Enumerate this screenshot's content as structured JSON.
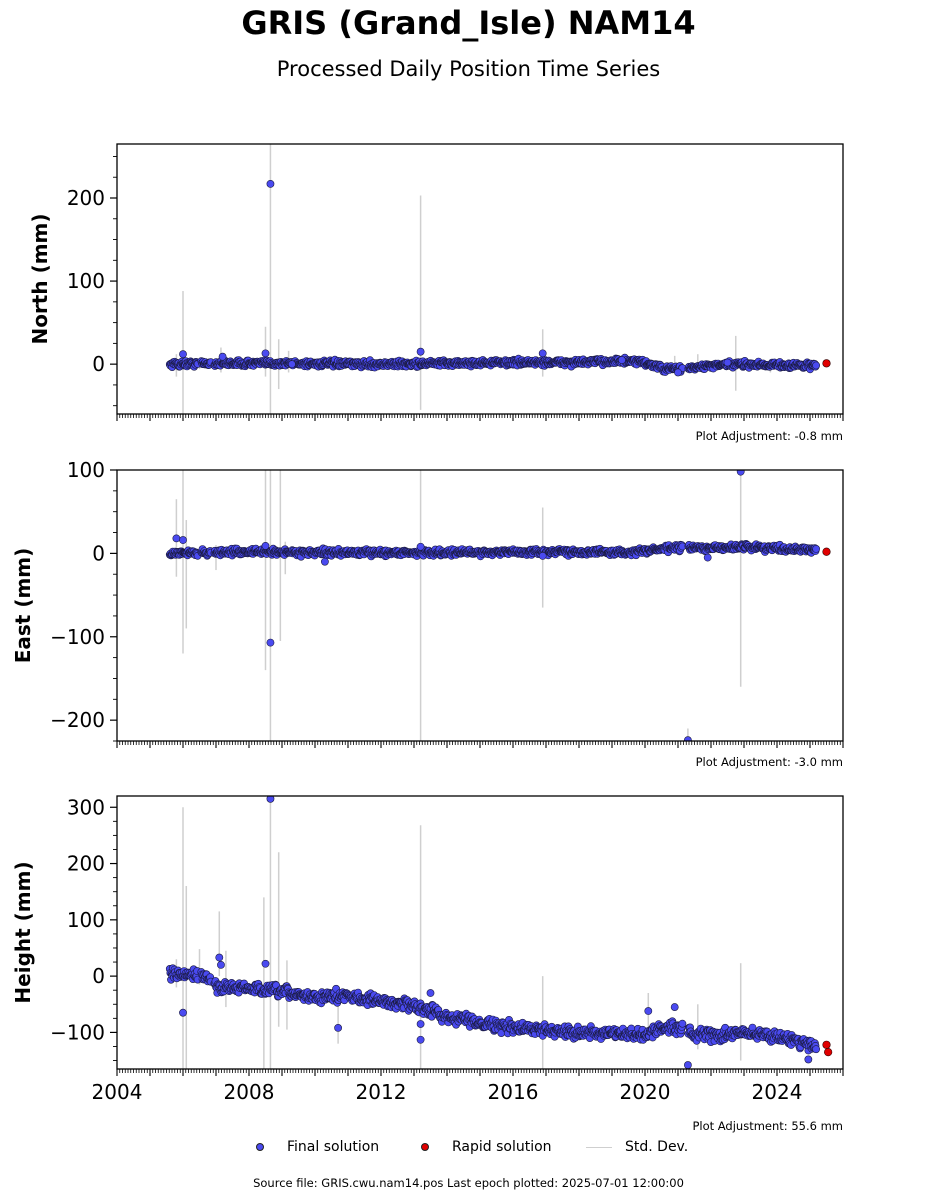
{
  "title": "GRIS (Grand_Isle) NAM14",
  "subtitle": "Processed Daily Position Time Series",
  "legend": {
    "final_label": "Final solution",
    "rapid_label": "Rapid solution",
    "stddev_label": "Std. Dev.",
    "final_color": "#4a4af0",
    "rapid_color": "#e00000",
    "stddev_color": "#cfcfcf"
  },
  "source_text": "Source file: GRIS.cwu.nam14.pos  Last epoch plotted: 2025-07-01 12:00:00",
  "chart_data": [
    {
      "type": "scatter",
      "ylabel": "North (mm)",
      "ylim": [
        -60,
        265
      ],
      "yticks": [
        0,
        100,
        200
      ],
      "adjustment": "Plot Adjustment: -0.8 mm",
      "base": [
        [
          2005.6,
          0
        ],
        [
          2007.0,
          1
        ],
        [
          2009.0,
          1
        ],
        [
          2012.0,
          0
        ],
        [
          2014.0,
          1
        ],
        [
          2016.0,
          2
        ],
        [
          2018.0,
          2
        ],
        [
          2019.2,
          4
        ],
        [
          2020.0,
          2
        ],
        [
          2020.6,
          -6
        ],
        [
          2021.3,
          -5
        ],
        [
          2022.0,
          -2
        ],
        [
          2023.0,
          0
        ],
        [
          2025.2,
          -2
        ]
      ],
      "noise": 2.5,
      "gaps": [
        [
          2006.45,
          2006.55
        ],
        [
          2006.85,
          2006.95
        ],
        [
          2021.15,
          2021.3
        ]
      ],
      "outliers": [
        [
          2006.0,
          12
        ],
        [
          2007.2,
          9
        ],
        [
          2008.5,
          13
        ],
        [
          2008.65,
          217
        ],
        [
          2009.3,
          0
        ],
        [
          2013.2,
          15
        ],
        [
          2016.9,
          13
        ],
        [
          2019.3,
          5
        ],
        [
          2021.0,
          -10
        ],
        [
          2022.5,
          2
        ]
      ],
      "errorbars": [
        [
          2005.8,
          -15,
          12
        ],
        [
          2006.0,
          -60,
          88
        ],
        [
          2006.5,
          -6,
          5
        ],
        [
          2007.15,
          -10,
          20
        ],
        [
          2008.5,
          -15,
          45
        ],
        [
          2008.65,
          -60,
          265
        ],
        [
          2008.9,
          -30,
          30
        ],
        [
          2009.2,
          -10,
          16
        ],
        [
          2013.2,
          -55,
          203
        ],
        [
          2016.9,
          -15,
          42
        ],
        [
          2020.9,
          -10,
          10
        ],
        [
          2021.6,
          -8,
          12
        ],
        [
          2022.75,
          -32,
          34
        ],
        [
          2023.8,
          -10,
          5
        ]
      ],
      "rapid": [
        [
          2025.5,
          1
        ]
      ]
    },
    {
      "type": "scatter",
      "ylabel": "East (mm)",
      "ylim": [
        -225,
        100
      ],
      "yticks": [
        -200,
        -100,
        0,
        100
      ],
      "adjustment": "Plot Adjustment: -3.0 mm",
      "base": [
        [
          2005.6,
          0
        ],
        [
          2008.0,
          2
        ],
        [
          2010.0,
          1
        ],
        [
          2014.0,
          1
        ],
        [
          2018.0,
          2
        ],
        [
          2019.5,
          1
        ],
        [
          2020.2,
          4
        ],
        [
          2021.0,
          7
        ],
        [
          2022.0,
          6
        ],
        [
          2023.0,
          8
        ],
        [
          2025.2,
          4
        ]
      ],
      "noise": 2.5,
      "gaps": [
        [
          2006.45,
          2006.55
        ],
        [
          2006.85,
          2006.95
        ],
        [
          2021.15,
          2021.3
        ]
      ],
      "outliers": [
        [
          2005.8,
          18
        ],
        [
          2006.0,
          16
        ],
        [
          2008.65,
          -107
        ],
        [
          2008.5,
          9
        ],
        [
          2010.3,
          -10
        ],
        [
          2013.2,
          8
        ],
        [
          2016.9,
          -3
        ],
        [
          2021.3,
          -224
        ],
        [
          2021.9,
          -5
        ],
        [
          2022.9,
          98
        ]
      ],
      "errorbars": [
        [
          2005.8,
          -28,
          65
        ],
        [
          2006.0,
          -120,
          100
        ],
        [
          2006.1,
          -90,
          40
        ],
        [
          2007.0,
          -20,
          10
        ],
        [
          2008.5,
          -140,
          100
        ],
        [
          2008.65,
          -225,
          100
        ],
        [
          2008.95,
          -105,
          100
        ],
        [
          2009.1,
          -25,
          14
        ],
        [
          2013.2,
          -225,
          100
        ],
        [
          2016.9,
          -65,
          55
        ],
        [
          2021.3,
          -225,
          -210
        ],
        [
          2022.9,
          -160,
          100
        ]
      ],
      "rapid": [
        [
          2025.5,
          2
        ]
      ]
    },
    {
      "type": "scatter",
      "ylabel": "Height (mm)",
      "ylim": [
        -165,
        320
      ],
      "yticks": [
        -100,
        0,
        100,
        200,
        300
      ],
      "adjustment": "Plot Adjustment: 55.6 mm",
      "base": [
        [
          2005.6,
          2
        ],
        [
          2006.6,
          2
        ],
        [
          2007.0,
          -18
        ],
        [
          2008.5,
          -25
        ],
        [
          2009.0,
          -28
        ],
        [
          2010.0,
          -38
        ],
        [
          2011.0,
          -35
        ],
        [
          2012.0,
          -45
        ],
        [
          2013.0,
          -52
        ],
        [
          2014.0,
          -72
        ],
        [
          2015.0,
          -82
        ],
        [
          2016.0,
          -92
        ],
        [
          2017.0,
          -95
        ],
        [
          2018.0,
          -100
        ],
        [
          2019.0,
          -103
        ],
        [
          2020.0,
          -105
        ],
        [
          2020.5,
          -92
        ],
        [
          2021.2,
          -90
        ],
        [
          2021.5,
          -105
        ],
        [
          2022.5,
          -105
        ],
        [
          2023.0,
          -100
        ],
        [
          2024.0,
          -107
        ],
        [
          2024.8,
          -118
        ],
        [
          2025.2,
          -125
        ]
      ],
      "noise": 7,
      "gaps": [
        [
          2006.45,
          2006.55
        ],
        [
          2006.85,
          2006.95
        ],
        [
          2021.15,
          2021.3
        ]
      ],
      "outliers": [
        [
          2006.0,
          -65
        ],
        [
          2007.1,
          33
        ],
        [
          2007.15,
          20
        ],
        [
          2008.5,
          22
        ],
        [
          2008.65,
          315
        ],
        [
          2010.7,
          -92
        ],
        [
          2013.2,
          -85
        ],
        [
          2013.2,
          -113
        ],
        [
          2013.5,
          -30
        ],
        [
          2020.1,
          -62
        ],
        [
          2020.9,
          -55
        ],
        [
          2021.3,
          -158
        ],
        [
          2024.95,
          -148
        ]
      ],
      "errorbars": [
        [
          2005.8,
          -20,
          30
        ],
        [
          2006.0,
          -165,
          300
        ],
        [
          2006.1,
          -165,
          160
        ],
        [
          2006.5,
          -15,
          48
        ],
        [
          2007.1,
          0,
          115
        ],
        [
          2007.3,
          -55,
          45
        ],
        [
          2008.45,
          -165,
          140
        ],
        [
          2008.65,
          -165,
          320
        ],
        [
          2008.9,
          -90,
          220
        ],
        [
          2009.15,
          -95,
          28
        ],
        [
          2010.7,
          -120,
          -50
        ],
        [
          2013.2,
          -165,
          268
        ],
        [
          2016.9,
          -165,
          0
        ],
        [
          2020.1,
          -90,
          -30
        ],
        [
          2021.6,
          -130,
          -50
        ],
        [
          2022.9,
          -150,
          23
        ]
      ],
      "rapid": [
        [
          2025.5,
          -122
        ],
        [
          2025.55,
          -135
        ]
      ]
    }
  ],
  "xaxis": {
    "xlim": [
      2004,
      2026
    ],
    "ticks": [
      2004,
      2008,
      2012,
      2016,
      2020,
      2024
    ]
  }
}
